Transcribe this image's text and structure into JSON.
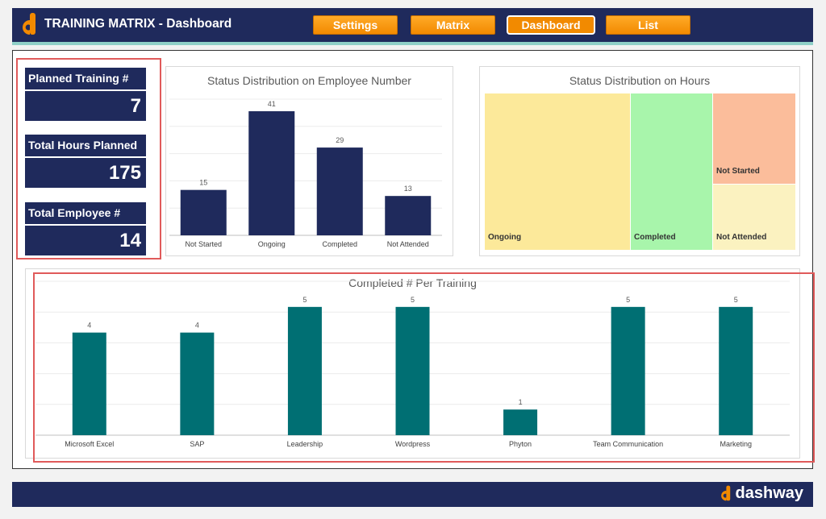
{
  "header": {
    "title": "TRAINING MATRIX - Dashboard",
    "logo_icon": "dashway-d-logo",
    "nav": [
      "Settings",
      "Matrix",
      "Dashboard",
      "List"
    ],
    "active_tab": "Dashboard"
  },
  "kpis": [
    {
      "label": "Planned Training #",
      "value": "7"
    },
    {
      "label": "Total Hours Planned",
      "value": "175"
    },
    {
      "label": "Total Employee #",
      "value": "14"
    }
  ],
  "treemap": {
    "title": "Status Distribution on Hours",
    "tiles": [
      {
        "label": "Ongoing",
        "color": "#fce99a"
      },
      {
        "label": "Completed",
        "color": "#a8f5ab"
      },
      {
        "label": "Not Started",
        "color": "#fbbd9b"
      },
      {
        "label": "Not Attended",
        "color": "#fbf2c0"
      }
    ]
  },
  "footer": {
    "brand": "dashway"
  },
  "colors": {
    "navy": "#1f2a5c",
    "orange": "#f28a00",
    "teal": "#006f73"
  },
  "chart_data": [
    {
      "type": "bar",
      "title": "Status Distribution on Employee Number",
      "categories": [
        "Not Started",
        "Ongoing",
        "Completed",
        "Not Attended"
      ],
      "values": [
        15,
        41,
        29,
        13
      ],
      "ylim": [
        0,
        45
      ],
      "grid": true,
      "color": "#1f2a5c"
    },
    {
      "type": "bar",
      "title": "Completed # Per Training",
      "categories": [
        "Microsoft Excel",
        "SAP",
        "Leadership",
        "Wordpress",
        "Phyton",
        "Team Communication",
        "Marketing"
      ],
      "values": [
        4,
        4,
        5,
        5,
        1,
        5,
        5
      ],
      "ylim": [
        0,
        6
      ],
      "grid": true,
      "color": "#006f73"
    }
  ]
}
